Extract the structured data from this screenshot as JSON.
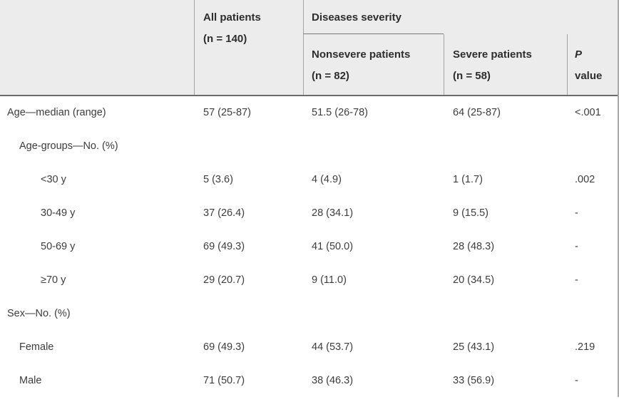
{
  "table": {
    "header": {
      "all_patients_line1": "All patients",
      "all_patients_line2": "(n = 140)",
      "diseases_severity": "Diseases severity",
      "nonsevere_line1": "Nonsevere patients",
      "nonsevere_line2": "(n = 82)",
      "severe_line1": "Severe patients",
      "severe_line2": "(n = 58)",
      "p_line1": "P",
      "p_line2": "value"
    },
    "rows": [
      {
        "label": "Age—median (range)",
        "indent": 0,
        "all": "57 (25-87)",
        "nonsevere": "51.5 (26-78)",
        "severe": "64 (25-87)",
        "p": "<.001"
      },
      {
        "label": "Age-groups—No. (%)",
        "indent": 1,
        "all": "",
        "nonsevere": "",
        "severe": "",
        "p": ""
      },
      {
        "label": "<30 y",
        "indent": 2,
        "all": "5 (3.6)",
        "nonsevere": "4 (4.9)",
        "severe": "1 (1.7)",
        "p": ".002"
      },
      {
        "label": "30-49 y",
        "indent": 2,
        "all": "37 (26.4)",
        "nonsevere": "28 (34.1)",
        "severe": "9 (15.5)",
        "p": "-"
      },
      {
        "label": "50-69 y",
        "indent": 2,
        "all": "69 (49.3)",
        "nonsevere": "41 (50.0)",
        "severe": "28 (48.3)",
        "p": "-"
      },
      {
        "label": "≥70 y",
        "indent": 2,
        "all": "29 (20.7)",
        "nonsevere": "9 (11.0)",
        "severe": "20 (34.5)",
        "p": "-"
      },
      {
        "label": "Sex—No. (%)",
        "indent": 0,
        "all": "",
        "nonsevere": "",
        "severe": "",
        "p": ""
      },
      {
        "label": "Female",
        "indent": 1,
        "all": "69 (49.3)",
        "nonsevere": "44 (53.7)",
        "severe": "25 (43.1)",
        "p": ".219"
      },
      {
        "label": "Male",
        "indent": 1,
        "all": "71 (50.7)",
        "nonsevere": "38 (46.3)",
        "severe": "33 (56.9)",
        "p": "-"
      }
    ],
    "colors": {
      "header_bg": "#ececec",
      "divider": "#a3a3a3",
      "strong_rule": "#6b6b6b",
      "text": "#3c3c3c"
    }
  }
}
